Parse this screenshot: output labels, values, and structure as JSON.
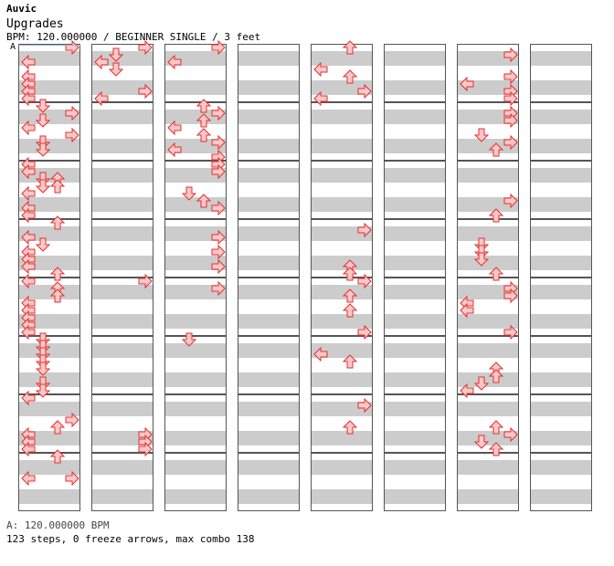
{
  "song": {
    "artist": "Auvic",
    "title": "Upgrades",
    "info": "BPM: 120.000000 / BEGINNER SINGLE / 3 feet"
  },
  "marker": {
    "label": "A"
  },
  "footer": {
    "bpm_line": "A: 120.000000 BPM",
    "stats_line": "123 steps, 0 freeze arrows, max combo 138"
  },
  "chart_data": {
    "type": "table",
    "lanes": [
      "left",
      "down",
      "up",
      "right"
    ],
    "arrow_fill": "#ffc8c8",
    "arrow_stroke": "#e03030",
    "stripe_color": "#cccccc",
    "measures_per_column": 8,
    "rows_per_measure": 8,
    "columns": 8,
    "notes": [
      [
        "R",
        "R",
        "R",
        "",
        "U",
        "",
        "",
        ""
      ],
      [
        "",
        "D",
        "",
        "",
        "",
        "",
        "R",
        ""
      ],
      [
        "L",
        "L",
        "L",
        "",
        "",
        "",
        "",
        ""
      ],
      [
        "",
        "D",
        "",
        "",
        "L",
        "",
        "",
        ""
      ],
      [
        "L",
        "",
        "",
        "",
        "U",
        "",
        "R",
        ""
      ],
      [
        "L",
        "",
        "",
        "",
        "",
        "",
        "L",
        ""
      ],
      [
        "L",
        "R",
        "",
        "",
        "R",
        "",
        "R",
        ""
      ],
      [
        "L",
        "L",
        "",
        "",
        "L",
        "",
        "R",
        ""
      ],
      [
        "D",
        "",
        "U",
        "",
        "",
        "",
        "",
        ""
      ],
      [
        "R",
        "",
        "R",
        "",
        "",
        "",
        "R",
        ""
      ],
      [
        "D",
        "",
        "U",
        "",
        "",
        "",
        "R",
        ""
      ],
      [
        "L",
        "",
        "L",
        "",
        "",
        "",
        "",
        ""
      ],
      [
        "R",
        "",
        "U",
        "",
        "",
        "",
        "D",
        ""
      ],
      [
        "D",
        "",
        "R",
        "",
        "",
        "",
        "R",
        ""
      ],
      [
        "D",
        "",
        "L",
        "",
        "",
        "",
        "U",
        ""
      ],
      [
        "",
        "",
        "R",
        "",
        "",
        "",
        "",
        ""
      ],
      [
        "L",
        "",
        "R",
        "",
        "",
        "",
        "",
        ""
      ],
      [
        "L",
        "",
        "R",
        "",
        "",
        "",
        "",
        ""
      ],
      [
        "DU",
        "",
        "",
        "",
        "",
        "",
        "",
        ""
      ],
      [
        "DU",
        "",
        "",
        "",
        "",
        "",
        "",
        ""
      ],
      [
        "L",
        "",
        "D",
        "",
        "",
        "",
        "",
        ""
      ],
      [
        "",
        "",
        "U",
        "",
        "",
        "",
        "R",
        ""
      ],
      [
        "L",
        "",
        "R",
        "",
        "",
        "",
        "",
        ""
      ],
      [
        "L",
        "",
        "",
        "",
        "",
        "",
        "U",
        ""
      ],
      [
        "U",
        "",
        "",
        "",
        "",
        "",
        "",
        ""
      ],
      [
        "",
        "",
        "",
        "",
        "R",
        "",
        "",
        ""
      ],
      [
        "L",
        "",
        "R",
        "",
        "",
        "",
        "",
        ""
      ],
      [
        "D",
        "",
        "",
        "",
        "",
        "",
        "D",
        ""
      ],
      [
        "L",
        "",
        "R",
        "",
        "",
        "",
        "D",
        ""
      ],
      [
        "L",
        "",
        "",
        "",
        "",
        "",
        "D",
        ""
      ],
      [
        "L",
        "",
        "R",
        "",
        "U",
        "",
        "",
        ""
      ],
      [
        "U",
        "",
        "",
        "",
        "U",
        "",
        "U",
        ""
      ],
      [
        "L",
        "R",
        "",
        "",
        "R",
        "",
        "",
        ""
      ],
      [
        "U",
        "",
        "R",
        "",
        "",
        "",
        "R",
        ""
      ],
      [
        "U",
        "",
        "",
        "",
        "U",
        "",
        "R",
        ""
      ],
      [
        "L",
        "",
        "",
        "",
        "",
        "",
        "L",
        ""
      ],
      [
        "L",
        "",
        "",
        "",
        "U",
        "",
        "L",
        ""
      ],
      [
        "L",
        "",
        "",
        "",
        "",
        "",
        "",
        ""
      ],
      [
        "L",
        "",
        "",
        "",
        "",
        "",
        "",
        ""
      ],
      [
        "L",
        "",
        "",
        "",
        "R",
        "",
        "R",
        ""
      ],
      [
        "D",
        "",
        "D",
        "",
        "",
        "",
        "",
        ""
      ],
      [
        "D",
        "",
        "",
        "",
        "",
        "",
        "",
        ""
      ],
      [
        "D",
        "",
        "",
        "",
        "L",
        "",
        "",
        ""
      ],
      [
        "D",
        "",
        "",
        "",
        "U",
        "",
        "",
        ""
      ],
      [
        "D",
        "",
        "",
        "",
        "",
        "",
        "U",
        ""
      ],
      [
        "",
        "",
        "",
        "",
        "",
        "",
        "U",
        ""
      ],
      [
        "D",
        "",
        "",
        "",
        "",
        "",
        "D",
        ""
      ],
      [
        "D",
        "",
        "",
        "",
        "",
        "",
        "L",
        ""
      ],
      [
        "L",
        "",
        "",
        "",
        "",
        "",
        "",
        ""
      ],
      [
        "",
        "",
        "",
        "",
        "R",
        "",
        "",
        ""
      ],
      [
        "",
        "",
        "",
        "",
        "",
        "",
        "",
        ""
      ],
      [
        "R",
        "",
        "",
        "",
        "",
        "",
        "",
        ""
      ],
      [
        "U",
        "",
        "",
        "",
        "U",
        "",
        "U",
        ""
      ],
      [
        "L",
        "R",
        "",
        "",
        "",
        "",
        "R",
        ""
      ],
      [
        "L",
        "R",
        "",
        "",
        "",
        "",
        "D",
        ""
      ],
      [
        "L",
        "R",
        "",
        "",
        "",
        "",
        "U",
        ""
      ],
      [
        "U",
        "",
        "",
        "",
        "",
        "",
        "",
        ""
      ],
      [
        "",
        "",
        "",
        "",
        "",
        "",
        "",
        ""
      ],
      [
        "",
        "",
        "",
        "",
        "",
        "",
        "",
        ""
      ],
      [
        "LR",
        "",
        "",
        "",
        "",
        "",
        "",
        ""
      ],
      [
        "",
        "",
        "",
        "",
        "",
        "",
        "",
        ""
      ],
      [
        "",
        "",
        "",
        "",
        "",
        "",
        "",
        ""
      ],
      [
        "",
        "",
        "",
        "",
        "",
        "",
        "",
        ""
      ],
      [
        "",
        "",
        "",
        "",
        "",
        "",
        "",
        ""
      ]
    ]
  }
}
